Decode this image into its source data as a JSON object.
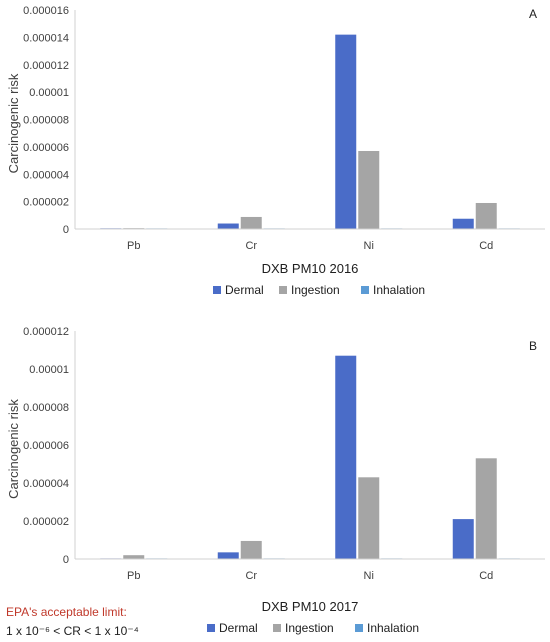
{
  "colors": {
    "Dermal": "#4a6cc8",
    "Ingestion": "#a5a5a5",
    "Inhalation": "#5b9bd5"
  },
  "chart_data": [
    {
      "type": "bar",
      "panel": "A",
      "xlabel": "DXB PM10 2016",
      "ylabel": "Carcinogenic risk",
      "ylim": [
        0,
        1.6e-05
      ],
      "yticks": [
        "0",
        "0.000002",
        "0.000004",
        "0.000006",
        "0.000008",
        "0.00001",
        "0.000012",
        "0.000014",
        "0.000016"
      ],
      "ytick_values": [
        0,
        2e-06,
        4e-06,
        6e-06,
        8e-06,
        1e-05,
        1.2e-05,
        1.4e-05,
        1.6e-05
      ],
      "categories": [
        "Pb",
        "Cr",
        "Ni",
        "Cd"
      ],
      "series": [
        {
          "name": "Dermal",
          "values": [
            5e-08,
            4e-07,
            1.42e-05,
            7.5e-07
          ]
        },
        {
          "name": "Ingestion",
          "values": [
            6e-08,
            8.8e-07,
            5.7e-06,
            1.9e-06
          ]
        },
        {
          "name": "Inhalation",
          "values": [
            1e-08,
            1e-08,
            3e-08,
            2e-08
          ]
        }
      ],
      "legend": [
        "Dermal",
        "Ingestion",
        "Inhalation"
      ],
      "legend_position": "bottom",
      "grid": false
    },
    {
      "type": "bar",
      "panel": "B",
      "xlabel": "DXB PM10 2017",
      "ylabel": "Carcinogenic risk",
      "ylim": [
        0,
        1.2e-05
      ],
      "yticks": [
        "0",
        "0.000002",
        "0.000004",
        "0.000006",
        "0.000008",
        "0.00001",
        "0.000012"
      ],
      "ytick_values": [
        0,
        2e-06,
        4e-06,
        6e-06,
        8e-06,
        1e-05,
        1.2e-05
      ],
      "categories": [
        "Pb",
        "Cr",
        "Ni",
        "Cd"
      ],
      "series": [
        {
          "name": "Dermal",
          "values": [
            1e-08,
            3.5e-07,
            1.07e-05,
            2.1e-06
          ]
        },
        {
          "name": "Ingestion",
          "values": [
            2e-07,
            9.5e-07,
            4.3e-06,
            5.3e-06
          ]
        },
        {
          "name": "Inhalation",
          "values": [
            1e-08,
            1e-08,
            2e-08,
            2e-08
          ]
        }
      ],
      "legend": [
        "Dermal",
        "Ingestion",
        "Inhalation"
      ],
      "legend_position": "bottom",
      "grid": false
    }
  ],
  "note": {
    "title": "EPA's acceptable limit:",
    "range": "1 x 10⁻⁶ < CR < 1 x 10⁻⁴"
  }
}
